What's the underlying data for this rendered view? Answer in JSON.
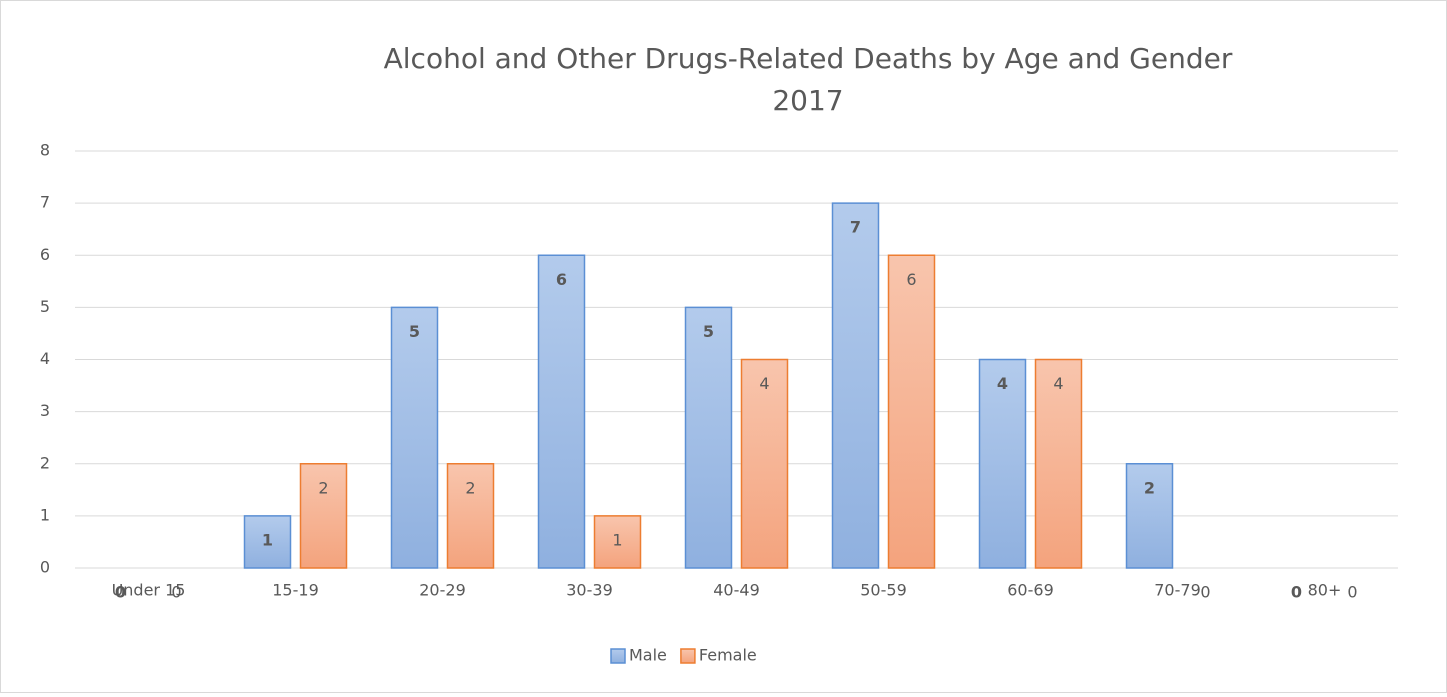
{
  "chart_data": {
    "type": "bar",
    "title": "Alcohol and Other Drugs-Related Deaths by Age and Gender",
    "subtitle": "2017",
    "categories": [
      "Under 15",
      "15-19",
      "20-29",
      "30-39",
      "40-49",
      "50-59",
      "60-69",
      "70-79",
      "80+"
    ],
    "series": [
      {
        "name": "Male",
        "color": "#5b8fd4",
        "values": [
          0,
          1,
          5,
          6,
          5,
          7,
          4,
          2,
          0
        ]
      },
      {
        "name": "Female",
        "color": "#ed7d31",
        "values": [
          0,
          2,
          2,
          1,
          4,
          6,
          4,
          0,
          0
        ]
      }
    ],
    "ylim": [
      0,
      8
    ],
    "yticks": [
      0,
      1,
      2,
      3,
      4,
      5,
      6,
      7,
      8
    ],
    "grid": true,
    "legend": "bottom"
  }
}
